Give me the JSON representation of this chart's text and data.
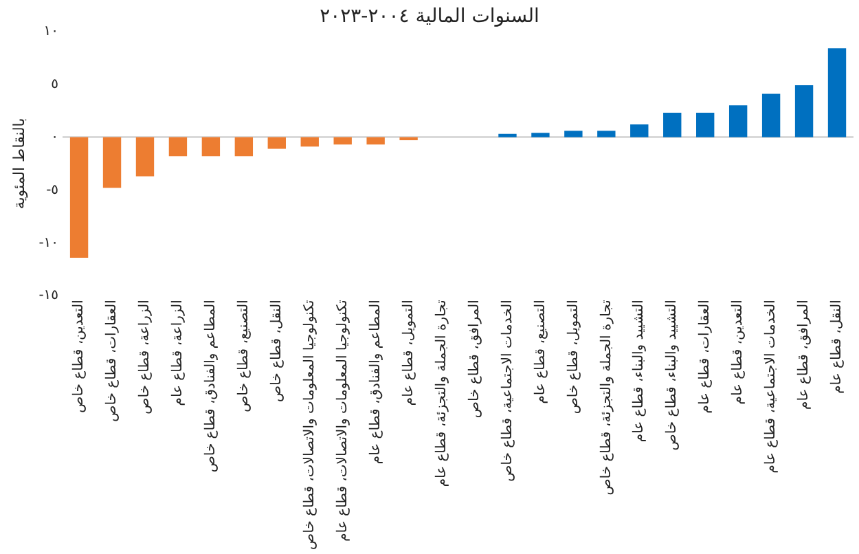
{
  "chart_data": {
    "type": "bar",
    "title": "السنوات المالية ٢٠٠٤-٢٠٢٣",
    "ylabel": "بالنقاط المئوية",
    "categories": [
      "التعدين، قطاع خاص",
      "العقارات، قطاع خاص",
      "الزراعة، قطاع خاص",
      "الزراعة، قطاع عام",
      "المطاعم والفنادق، قطاع خاص",
      "التصنيع، قطاع خاص",
      "النقل، قطاع خاص",
      "تكنولوجيا المعلومات والاتصالات، قطاع خاص",
      "تكنولوجيا المعلومات والاتصالات، قطاع عام",
      "المطاعم والفنادق، قطاع عام",
      "التمويل، قطاع عام",
      "تجارة الجملة والتجزئة، قطاع عام",
      "المرافق، قطاع خاص",
      "الخدمات الاجتماعية، قطاع خاص",
      "التصنيع، قطاع عام",
      "التمويل، قطاع خاص",
      "تجارة الجملة والتجزئة، قطاع خاص",
      "التشييد والبناء، قطاع عام",
      "التشييد والبناء، قطاع خاص",
      "العقارات، قطاع عام",
      "التعدين، قطاع عام",
      "الخدمات الاجتماعية، قطاع عام",
      "المرافق، قطاع عام",
      "النقل، قطاع عام"
    ],
    "values": [
      -11.4,
      -4.8,
      -3.7,
      -1.8,
      -1.8,
      -1.8,
      -1.1,
      -0.9,
      -0.7,
      -0.7,
      -0.3,
      0,
      0,
      0.3,
      0.4,
      0.6,
      0.6,
      1.2,
      2.3,
      2.3,
      3.0,
      4.1,
      4.9,
      8.4
    ],
    "colors": [
      "#ed7d31",
      "#ed7d31",
      "#ed7d31",
      "#ed7d31",
      "#ed7d31",
      "#ed7d31",
      "#ed7d31",
      "#ed7d31",
      "#ed7d31",
      "#ed7d31",
      "#ed7d31",
      "#ed7d31",
      "#0070c0",
      "#0070c0",
      "#0070c0",
      "#0070c0",
      "#0070c0",
      "#0070c0",
      "#0070c0",
      "#0070c0",
      "#0070c0",
      "#0070c0",
      "#0070c0",
      "#0070c0"
    ],
    "ylim": [
      -15,
      10
    ],
    "yticks": [
      {
        "value": -15,
        "label": "-١٥"
      },
      {
        "value": -10,
        "label": "-١٠"
      },
      {
        "value": -5,
        "label": "-٥"
      },
      {
        "value": 0,
        "label": "٠"
      },
      {
        "value": 5,
        "label": "٥"
      },
      {
        "value": 10,
        "label": "١٠"
      }
    ],
    "ref_lines": [
      {
        "axis": "y",
        "value": 0,
        "color": "#d9d9d9"
      }
    ],
    "grid": false,
    "legend": false
  }
}
